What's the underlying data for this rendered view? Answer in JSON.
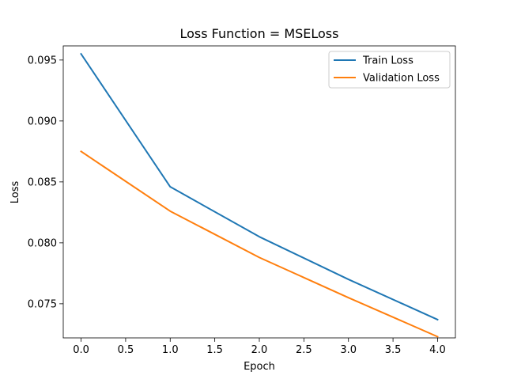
{
  "chart_data": {
    "type": "line",
    "title": "Loss Function = MSELoss",
    "xlabel": "Epoch",
    "ylabel": "Loss",
    "x": [
      0,
      1,
      2,
      3,
      4
    ],
    "xticks": [
      "0.0",
      "0.5",
      "1.0",
      "1.5",
      "2.0",
      "2.5",
      "3.0",
      "3.5",
      "4.0"
    ],
    "xtick_values": [
      0.0,
      0.5,
      1.0,
      1.5,
      2.0,
      2.5,
      3.0,
      3.5,
      4.0
    ],
    "yticks": [
      "0.075",
      "0.080",
      "0.085",
      "0.090",
      "0.095"
    ],
    "ytick_values": [
      0.075,
      0.08,
      0.085,
      0.09,
      0.095
    ],
    "xlim": [
      -0.2,
      4.2
    ],
    "ylim": [
      0.0722,
      0.09616
    ],
    "grid": false,
    "legend_position": "top-right",
    "series": [
      {
        "name": "Train Loss",
        "color": "#1f77b4",
        "values": [
          0.0955,
          0.0846,
          0.0805,
          0.077,
          0.0737
        ]
      },
      {
        "name": "Validation Loss",
        "color": "#ff7f0e",
        "values": [
          0.0875,
          0.0826,
          0.0788,
          0.0755,
          0.0723
        ]
      }
    ]
  }
}
